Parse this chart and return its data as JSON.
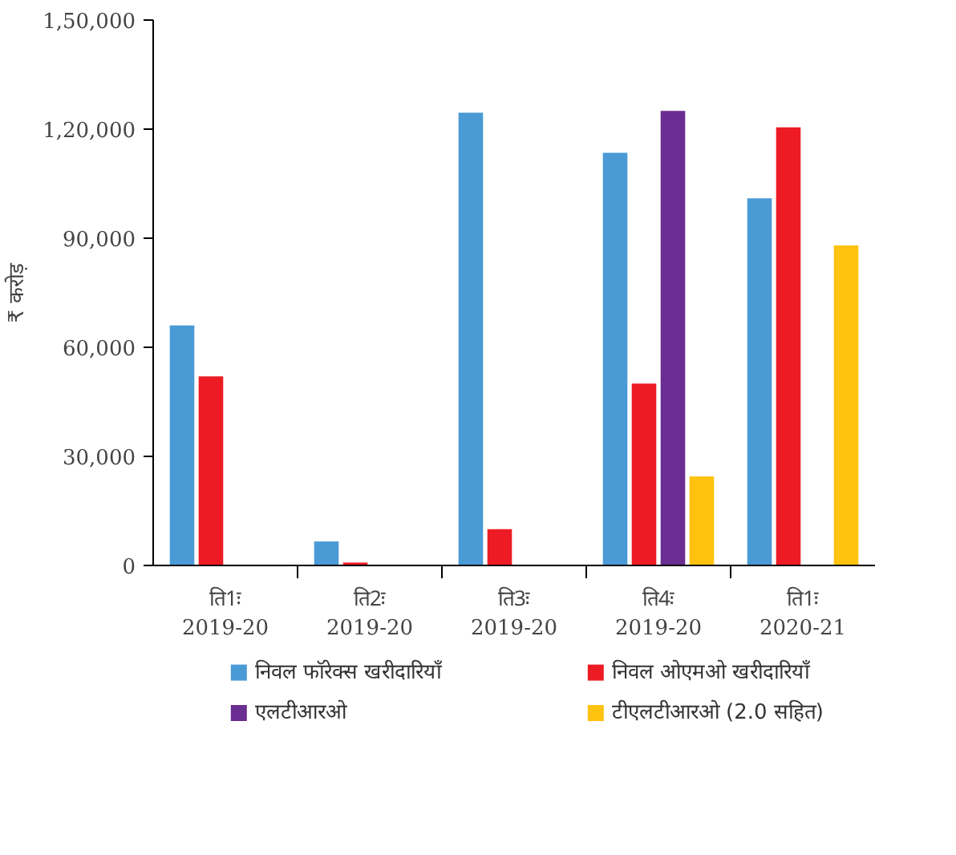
{
  "chart_data": {
    "type": "bar",
    "ylabel": "₹ करोड़",
    "categories": [
      "ति1ः\n2019-20",
      "ति2ः\n2019-20",
      "ति3ः\n2019-20",
      "ति4ः\n2019-20",
      "ति1ः\n2020-21"
    ],
    "series": [
      {
        "name": "निवल फॉरेक्स खरीदारियाँ",
        "color": "#4a9ad6",
        "values": [
          66000,
          6600,
          124500,
          113500,
          101000
        ]
      },
      {
        "name": "निवल ओएमओ खरीदारियाँ",
        "color": "#ed1c24",
        "values": [
          52000,
          800,
          10000,
          50000,
          120500
        ]
      },
      {
        "name": "एलटीआरओ",
        "color": "#6a2d91",
        "values": [
          null,
          null,
          null,
          125000,
          null
        ]
      },
      {
        "name": "टीएलटीआरओ (2.0 सहित)",
        "color": "#ffc20e",
        "values": [
          null,
          null,
          null,
          24500,
          88000
        ]
      }
    ],
    "ylim": [
      0,
      150000
    ],
    "yticks": [
      0,
      {
        "value": 30000,
        "label": "30,000"
      },
      {
        "value": 60000,
        "label": "60,000"
      },
      {
        "value": 90000,
        "label": "90,000"
      },
      {
        "value": 120000,
        "label": "1,20,000"
      },
      {
        "value": 150000,
        "label": "1,50,000"
      }
    ],
    "grid": false,
    "legend": "bottom"
  }
}
